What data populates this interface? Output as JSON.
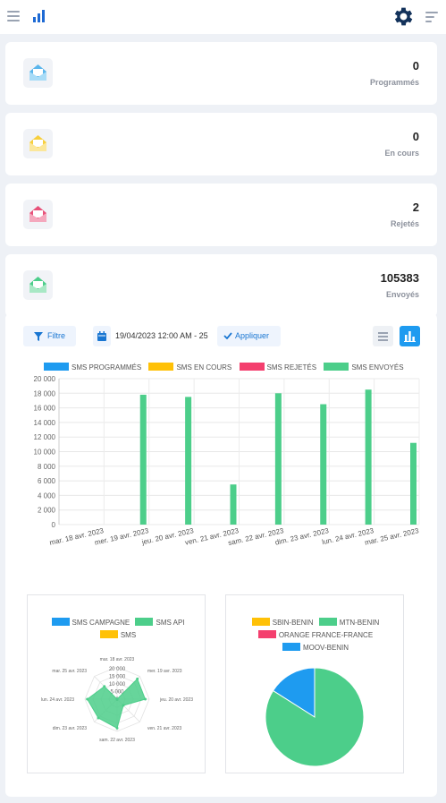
{
  "topbar": {
    "menu_icon": "hamburger-icon",
    "logo_icon": "bar-chart-icon",
    "settings_icon": "gear-icon",
    "options_icon": "menu-lines-icon"
  },
  "stats": [
    {
      "value": "0",
      "label": "Programmés",
      "color": "#5bb6ec"
    },
    {
      "value": "0",
      "label": "En cours",
      "color": "#f7cf3d"
    },
    {
      "value": "2",
      "label": "Rejetés",
      "color": "#e8527a"
    },
    {
      "value": "105383",
      "label": "Envoyés",
      "color": "#4cce8a"
    }
  ],
  "toolbar": {
    "filter_label": "Filtre",
    "date_value": "19/04/2023 12:00 AM - 25",
    "apply_label": "Appliquer"
  },
  "colors": {
    "programmes": "#1e9bf0",
    "en_cours": "#ffc107",
    "rejetes": "#f43f6e",
    "envoyes": "#4cce8a",
    "accent": "#1976d2"
  },
  "chart_data": [
    {
      "type": "bar",
      "categories": [
        "mar. 18 avr. 2023",
        "mer. 19 avr. 2023",
        "jeu. 20 avr. 2023",
        "ven. 21 avr. 2023",
        "sam. 22 avr. 2023",
        "dim. 23 avr. 2023",
        "lun. 24 avr. 2023",
        "mar. 25 avr. 2023"
      ],
      "series": [
        {
          "name": "SMS PROGRAMMÉS",
          "values": [
            0,
            0,
            0,
            0,
            0,
            0,
            0,
            0
          ]
        },
        {
          "name": "SMS EN COURS",
          "values": [
            0,
            0,
            0,
            0,
            0,
            0,
            0,
            0
          ]
        },
        {
          "name": "SMS REJETÉS",
          "values": [
            0,
            0,
            0,
            0,
            0,
            0,
            0,
            0
          ]
        },
        {
          "name": "SMS ENVOYÉS",
          "values": [
            0,
            17800,
            17500,
            5500,
            18000,
            16500,
            18500,
            11200
          ]
        }
      ],
      "yticks": [
        "20 000",
        "18 000",
        "16 000",
        "14 000",
        "12 000",
        "10 000",
        "8 000",
        "6 000",
        "4 000",
        "2 000",
        "0"
      ],
      "ylim": [
        0,
        20000
      ],
      "legend": "top",
      "grid": true
    },
    {
      "type": "radar",
      "categories": [
        "mar. 18 avr. 2023",
        "mer. 19 avr. 2023",
        "jeu. 20 avr. 2023",
        "ven. 21 avr. 2023",
        "sam. 22 avr. 2023",
        "dim. 23 avr. 2023",
        "lun. 24 avr. 2023",
        "mar. 25 avr. 2023"
      ],
      "series": [
        {
          "name": "SMS CAMPAGNE",
          "values": [
            0,
            0,
            0,
            0,
            0,
            0,
            0,
            0
          ]
        },
        {
          "name": "SMS API",
          "values": [
            0,
            17800,
            17500,
            5500,
            18000,
            16500,
            18500,
            11200
          ]
        },
        {
          "name": "SMS",
          "values": [
            0,
            0,
            0,
            0,
            0,
            0,
            0,
            0
          ]
        }
      ],
      "ticks": [
        "20 000",
        "15 000",
        "10 000",
        "5 000",
        "0"
      ],
      "legend": "top"
    },
    {
      "type": "pie",
      "labels": [
        "SBIN-BENIN",
        "MTN-BENIN",
        "ORANGE FRANCE-FRANCE",
        "MOOV-BENIN"
      ],
      "values": [
        0,
        84,
        0,
        16
      ],
      "colors": [
        "#ffc107",
        "#4cce8a",
        "#f43f6e",
        "#1e9bf0"
      ],
      "legend": "top"
    }
  ]
}
